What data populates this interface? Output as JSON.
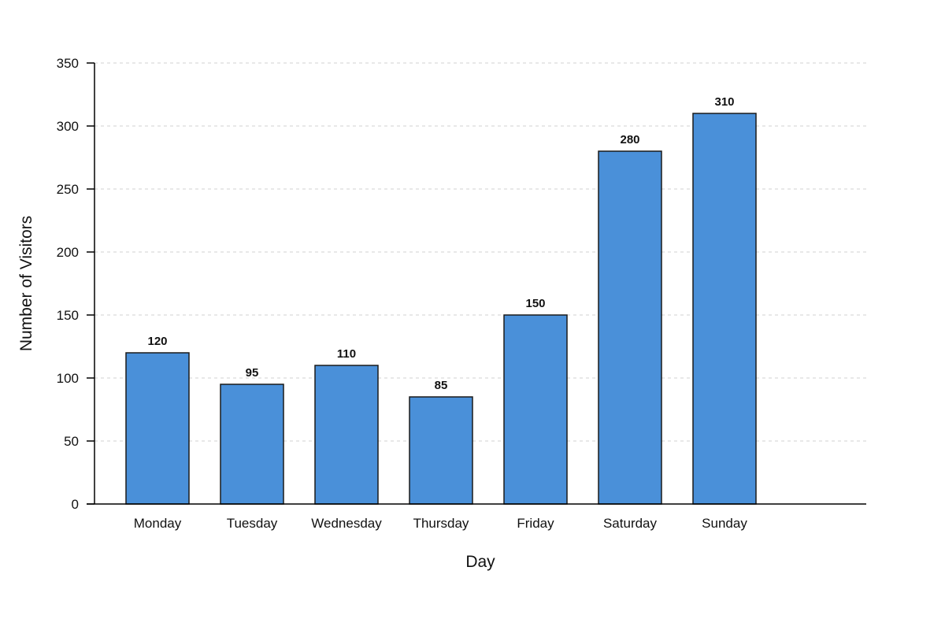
{
  "chart_data": {
    "type": "bar",
    "title": "",
    "xlabel": "Day",
    "ylabel": "Number of Visitors",
    "categories": [
      "Monday",
      "Tuesday",
      "Wednesday",
      "Thursday",
      "Friday",
      "Saturday",
      "Sunday"
    ],
    "values": [
      120,
      95,
      110,
      85,
      150,
      280,
      310
    ],
    "value_labels": [
      "120",
      "95",
      "110",
      "85",
      "150",
      "280",
      "310"
    ],
    "ylim": [
      0,
      350
    ],
    "yticks": [
      0,
      50,
      100,
      150,
      200,
      250,
      300,
      350
    ],
    "ytick_labels": [
      "0",
      "50",
      "100",
      "150",
      "200",
      "250",
      "300",
      "350"
    ],
    "grid": true,
    "grid_style": "dashed-horizontal",
    "legend": "none",
    "colors": {
      "bar_fill": "#4a90d9",
      "bar_stroke": "#1a1a1a",
      "grid": "#d0d0d0",
      "axis": "#000000",
      "text": "#111111"
    }
  }
}
